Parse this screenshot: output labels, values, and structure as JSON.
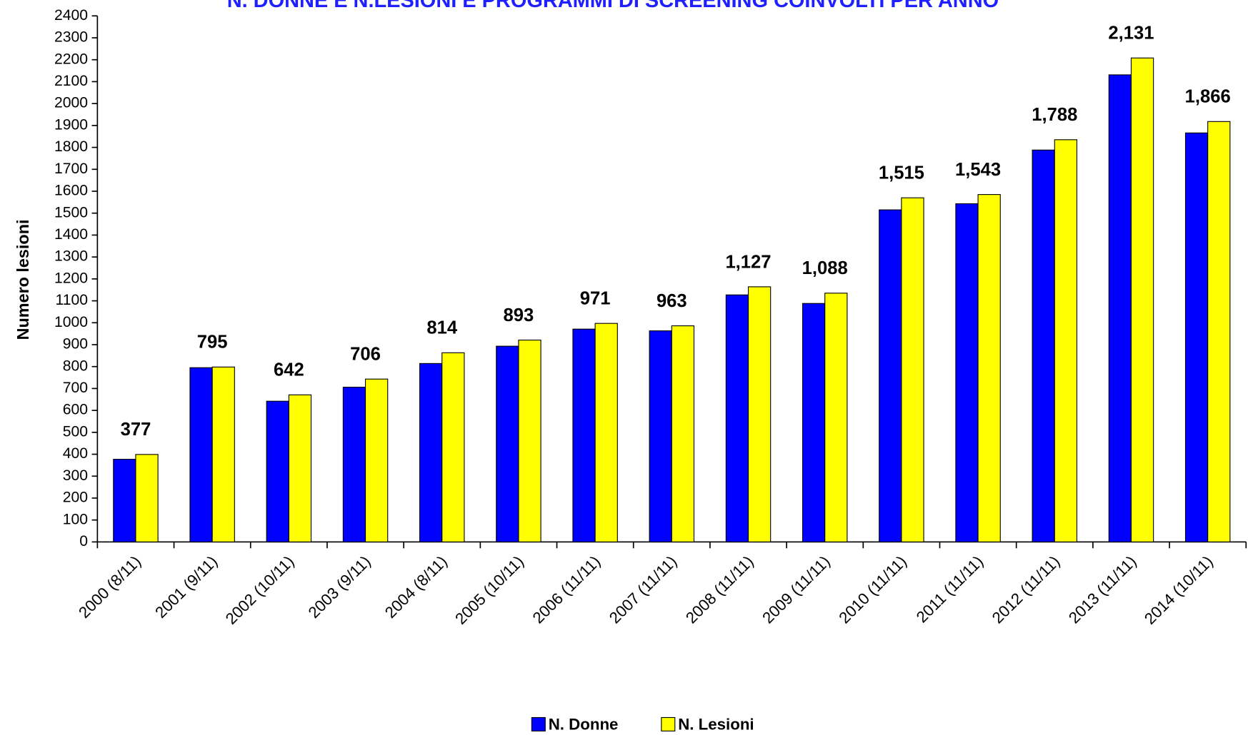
{
  "chart_data": {
    "type": "bar",
    "title": "N. DONNE E N.LESIONI E PROGRAMMI DI SCREENING COINVOLTI PER ANNO",
    "y_label": "Numero lesioni",
    "categories": [
      "2000 (8/11)",
      "2001 (9/11)",
      "2002 (10/11)",
      "2003 (9/11)",
      "2004 (8/11)",
      "2005 (10/11)",
      "2006 (11/11)",
      "2007 (11/11)",
      "2008 (11/11)",
      "2009 (11/11)",
      "2010 (11/11)",
      "2011 (11/11)",
      "2012 (11/11)",
      "2013 (11/11)",
      "2014 (10/11)"
    ],
    "series": [
      {
        "name": "N. Donne",
        "color": "#0000ff",
        "values": [
          377,
          795,
          642,
          706,
          814,
          893,
          971,
          963,
          1127,
          1088,
          1515,
          1543,
          1788,
          2131,
          1866
        ],
        "value_labels": [
          "377",
          "795",
          "642",
          "706",
          "814",
          "893",
          "971",
          "963",
          "1,127",
          "1,088",
          "1,515",
          "1,543",
          "1,788",
          "2,131",
          "1,866"
        ]
      },
      {
        "name": "N. Lesioni",
        "color": "#ffff00",
        "values": [
          399,
          798,
          671,
          743,
          863,
          921,
          997,
          986,
          1164,
          1135,
          1570,
          1585,
          1835,
          2208,
          1918
        ]
      }
    ],
    "ylim": [
      0,
      2400
    ],
    "yticks": [
      0,
      100,
      200,
      300,
      400,
      500,
      600,
      700,
      800,
      900,
      1000,
      1100,
      1200,
      1300,
      1400,
      1500,
      1600,
      1700,
      1800,
      1900,
      2000,
      2100,
      2200,
      2300,
      2400
    ],
    "grid": false,
    "legend": "bottom"
  }
}
